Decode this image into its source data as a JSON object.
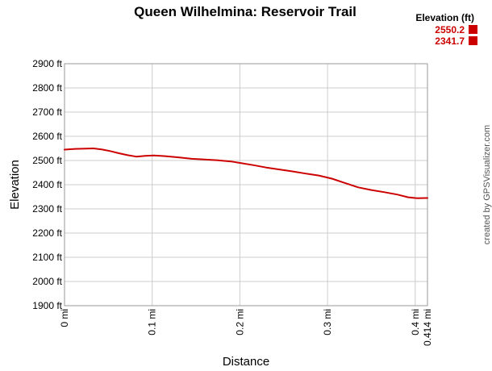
{
  "chart_data": {
    "type": "line",
    "title": "Queen Wilhelmina: Reservoir Trail",
    "xlabel": "Distance",
    "ylabel": "Elevation",
    "xlim": [
      0,
      0.414
    ],
    "ylim": [
      1900,
      2900
    ],
    "x_ticks": [
      {
        "value": 0,
        "label": "0 mi"
      },
      {
        "value": 0.1,
        "label": "0.1 mi"
      },
      {
        "value": 0.2,
        "label": "0.2 mi"
      },
      {
        "value": 0.3,
        "label": "0.3 mi"
      },
      {
        "value": 0.4,
        "label": "0.4 mi"
      },
      {
        "value": 0.414,
        "label": "0.414 mi"
      }
    ],
    "y_ticks": [
      {
        "value": 1900,
        "label": "1900 ft"
      },
      {
        "value": 2000,
        "label": "2000 ft"
      },
      {
        "value": 2100,
        "label": "2100 ft"
      },
      {
        "value": 2200,
        "label": "2200 ft"
      },
      {
        "value": 2300,
        "label": "2300 ft"
      },
      {
        "value": 2400,
        "label": "2400 ft"
      },
      {
        "value": 2500,
        "label": "2500 ft"
      },
      {
        "value": 2600,
        "label": "2600 ft"
      },
      {
        "value": 2700,
        "label": "2700 ft"
      },
      {
        "value": 2800,
        "label": "2800 ft"
      },
      {
        "value": 2900,
        "label": "2900 ft"
      }
    ],
    "grid": true,
    "legend": {
      "title": "Elevation (ft)",
      "position": "top-right",
      "entries": [
        "2550.2",
        "2341.7"
      ]
    },
    "series": [
      {
        "color": "#cc0000",
        "x": [
          0,
          0.012,
          0.025,
          0.033,
          0.042,
          0.052,
          0.062,
          0.072,
          0.082,
          0.092,
          0.102,
          0.115,
          0.13,
          0.145,
          0.16,
          0.175,
          0.19,
          0.2,
          0.215,
          0.23,
          0.245,
          0.26,
          0.275,
          0.29,
          0.305,
          0.32,
          0.335,
          0.35,
          0.365,
          0.38,
          0.392,
          0.402,
          0.414
        ],
        "values": [
          2545,
          2548,
          2549,
          2550,
          2546,
          2539,
          2530,
          2522,
          2516,
          2519,
          2521,
          2518,
          2513,
          2507,
          2504,
          2501,
          2496,
          2490,
          2481,
          2471,
          2463,
          2455,
          2446,
          2438,
          2425,
          2407,
          2389,
          2378,
          2369,
          2359,
          2348,
          2344,
          2345
        ]
      }
    ]
  },
  "credit": "created by GPSVisualizer.com"
}
